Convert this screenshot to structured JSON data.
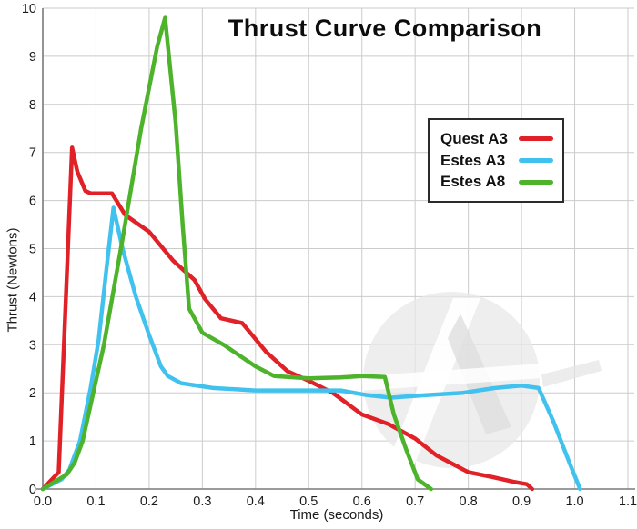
{
  "chart_data": {
    "type": "line",
    "title": "Thrust Curve Comparison",
    "xlabel": "Time (seconds)",
    "ylabel": "Thrust (Newtons)",
    "xlim": [
      0,
      1.1
    ],
    "ylim": [
      0,
      10
    ],
    "x_ticks": [
      "0.0",
      "0.1",
      "0.2",
      "0.3",
      "0.4",
      "0.5",
      "0.6",
      "0.7",
      "0.8",
      "0.9",
      "1.0",
      "1.1"
    ],
    "y_ticks": [
      "0",
      "1",
      "2",
      "3",
      "4",
      "5",
      "6",
      "7",
      "8",
      "9",
      "10"
    ],
    "grid": true,
    "legend_position": "upper-right-inset",
    "colors": {
      "grid": "#cbcbcb",
      "axis": "#7a7a7a",
      "tick_text": "#1a1a1a",
      "watermark": "#e8e8e8"
    },
    "series": [
      {
        "name": "Quest A3",
        "color": "#e02127",
        "points": [
          [
            0,
            0
          ],
          [
            0.03,
            0.35
          ],
          [
            0.055,
            7.1
          ],
          [
            0.065,
            6.6
          ],
          [
            0.08,
            6.2
          ],
          [
            0.09,
            6.15
          ],
          [
            0.13,
            6.15
          ],
          [
            0.155,
            5.7
          ],
          [
            0.2,
            5.35
          ],
          [
            0.245,
            4.75
          ],
          [
            0.285,
            4.35
          ],
          [
            0.305,
            3.95
          ],
          [
            0.335,
            3.55
          ],
          [
            0.375,
            3.45
          ],
          [
            0.42,
            2.85
          ],
          [
            0.46,
            2.45
          ],
          [
            0.5,
            2.25
          ],
          [
            0.545,
            2.0
          ],
          [
            0.6,
            1.55
          ],
          [
            0.65,
            1.35
          ],
          [
            0.7,
            1.05
          ],
          [
            0.74,
            0.7
          ],
          [
            0.8,
            0.35
          ],
          [
            0.845,
            0.25
          ],
          [
            0.885,
            0.15
          ],
          [
            0.91,
            0.1
          ],
          [
            0.92,
            0
          ]
        ]
      },
      {
        "name": "Estes A3",
        "color": "#41c2ee",
        "points": [
          [
            0,
            0
          ],
          [
            0.035,
            0.2
          ],
          [
            0.05,
            0.4
          ],
          [
            0.07,
            1.0
          ],
          [
            0.09,
            2.1
          ],
          [
            0.105,
            3.1
          ],
          [
            0.12,
            4.6
          ],
          [
            0.133,
            5.85
          ],
          [
            0.15,
            5.0
          ],
          [
            0.175,
            4.0
          ],
          [
            0.2,
            3.2
          ],
          [
            0.222,
            2.55
          ],
          [
            0.235,
            2.35
          ],
          [
            0.26,
            2.2
          ],
          [
            0.32,
            2.1
          ],
          [
            0.4,
            2.05
          ],
          [
            0.48,
            2.05
          ],
          [
            0.56,
            2.05
          ],
          [
            0.61,
            1.95
          ],
          [
            0.655,
            1.9
          ],
          [
            0.72,
            1.95
          ],
          [
            0.79,
            2.0
          ],
          [
            0.85,
            2.1
          ],
          [
            0.9,
            2.15
          ],
          [
            0.932,
            2.1
          ],
          [
            0.96,
            1.4
          ],
          [
            0.99,
            0.55
          ],
          [
            1.01,
            0
          ]
        ]
      },
      {
        "name": "Estes A8",
        "color": "#4cb32b",
        "points": [
          [
            0,
            0
          ],
          [
            0.045,
            0.3
          ],
          [
            0.06,
            0.55
          ],
          [
            0.075,
            1.0
          ],
          [
            0.095,
            2.0
          ],
          [
            0.115,
            3.0
          ],
          [
            0.15,
            5.2
          ],
          [
            0.185,
            7.5
          ],
          [
            0.215,
            9.2
          ],
          [
            0.23,
            9.8
          ],
          [
            0.25,
            7.6
          ],
          [
            0.263,
            5.5
          ],
          [
            0.275,
            3.75
          ],
          [
            0.3,
            3.25
          ],
          [
            0.34,
            3.0
          ],
          [
            0.4,
            2.55
          ],
          [
            0.435,
            2.35
          ],
          [
            0.5,
            2.3
          ],
          [
            0.56,
            2.32
          ],
          [
            0.6,
            2.35
          ],
          [
            0.643,
            2.33
          ],
          [
            0.66,
            1.55
          ],
          [
            0.684,
            0.8
          ],
          [
            0.705,
            0.2
          ],
          [
            0.73,
            0
          ]
        ]
      }
    ]
  }
}
